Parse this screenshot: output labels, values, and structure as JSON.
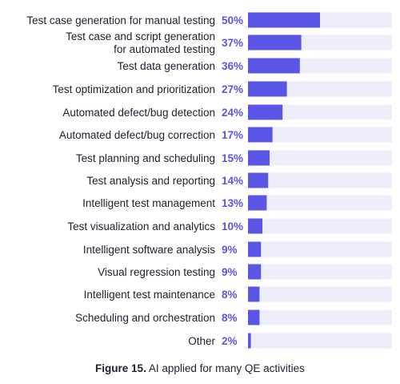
{
  "chart_data": {
    "type": "bar",
    "orientation": "horizontal",
    "categories": [
      "Test case generation for manual testing",
      "Test case and script generation\nfor automated testing",
      "Test data generation",
      "Test optimization and prioritization",
      "Automated defect/bug detection",
      "Automated defect/bug correction",
      "Test planning and scheduling",
      "Test analysis and reporting",
      "Intelligent test management",
      "Test visualization and analytics",
      "Intelligent software analysis",
      "Visual regression testing",
      "Intelligent test maintenance",
      "Scheduling and orchestration",
      "Other"
    ],
    "values": [
      50,
      37,
      36,
      27,
      24,
      17,
      15,
      14,
      13,
      10,
      9,
      9,
      8,
      8,
      2
    ],
    "value_labels": [
      "50%",
      "37%",
      "36%",
      "27%",
      "24%",
      "17%",
      "15%",
      "14%",
      "13%",
      "10%",
      "9%",
      "9%",
      "8%",
      "8%",
      "2%"
    ],
    "xlim": [
      0,
      100
    ],
    "grid": false,
    "colors": {
      "bar": "#5b55e6",
      "track": "#eeeefb",
      "value_text": "#5b55e6",
      "label_text": "#1f1f2e"
    }
  },
  "caption": {
    "figure_label": "Figure 15.",
    "text": "AI applied for many QE activities"
  }
}
